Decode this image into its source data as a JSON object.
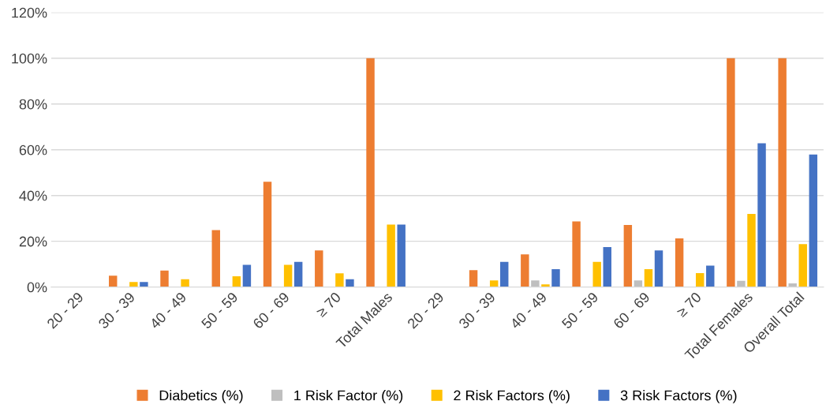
{
  "chart_data": {
    "type": "bar",
    "categories": [
      "20 - 29",
      "30 - 39",
      "40 - 49",
      "50 - 59",
      "60 - 69",
      "≥ 70",
      "Total Males",
      "20 - 29",
      "30 - 39",
      "40 - 49",
      "50 - 59",
      "60 - 69",
      "≥ 70",
      "Total Females",
      "Overall Total"
    ],
    "series": [
      {
        "name": "Diabetics (%)",
        "color": "#ed7d31",
        "values": [
          null,
          5,
          7.2,
          24.9,
          46,
          16,
          100,
          null,
          7.4,
          14.3,
          28.7,
          27.1,
          21.3,
          100,
          100
        ]
      },
      {
        "name": "1 Risk Factor (%)",
        "color": "#bfbfbf",
        "values": [
          null,
          null,
          null,
          null,
          null,
          null,
          null,
          null,
          null,
          2.9,
          null,
          2.9,
          null,
          2.7,
          1.6
        ]
      },
      {
        "name": "2 Risk Factors (%)",
        "color": "#ffc000",
        "values": [
          null,
          2.2,
          3.4,
          4.7,
          9.7,
          6,
          27.3,
          null,
          2.9,
          1.2,
          11,
          7.8,
          6.1,
          32,
          18.8
        ]
      },
      {
        "name": "3 Risk Factors (%)",
        "color": "#4472c4",
        "values": [
          null,
          2.2,
          null,
          9.7,
          11,
          3.4,
          27.3,
          null,
          11,
          7.8,
          17.5,
          16,
          9.4,
          62.8,
          57.9
        ]
      }
    ],
    "ylim": [
      0,
      120
    ],
    "yticks": [
      {
        "value": 0,
        "label": "0%"
      },
      {
        "value": 20,
        "label": "20%"
      },
      {
        "value": 40,
        "label": "40%"
      },
      {
        "value": 60,
        "label": "60%"
      },
      {
        "value": 80,
        "label": "80%"
      },
      {
        "value": 100,
        "label": "100%"
      },
      {
        "value": 120,
        "label": "120%"
      }
    ],
    "grid": "y",
    "legend": "bottom"
  }
}
